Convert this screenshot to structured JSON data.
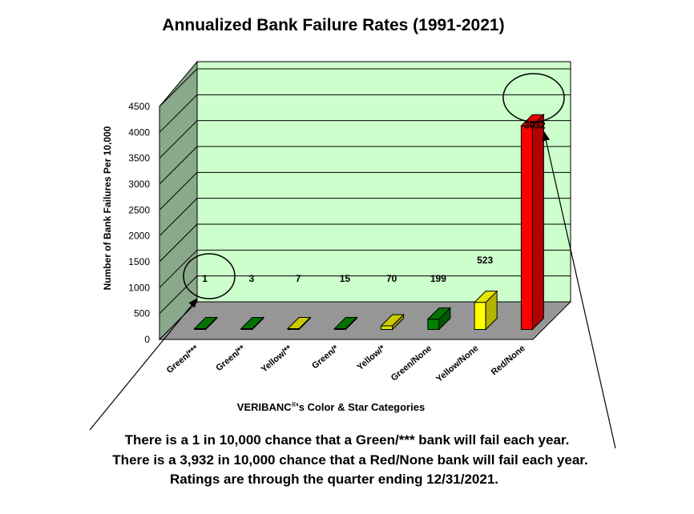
{
  "chart_data": {
    "type": "bar",
    "title": "Annualized Bank Failure Rates (1991-2021)",
    "ylabel": "Number of Bank Failures Per 10,000",
    "xlabel_prefix": "VERIBANC",
    "xlabel_mark": "®",
    "xlabel_suffix": "'s Color & Star Categories",
    "ylim": [
      0,
      4500
    ],
    "yticks": [
      0,
      500,
      1000,
      1500,
      2000,
      2500,
      3000,
      3500,
      4000,
      4500
    ],
    "categories": [
      "Green/***",
      "Green/**",
      "Yellow/**",
      "Green/*",
      "Yellow/*",
      "Green/None",
      "Yellow/None",
      "Red/None"
    ],
    "values": [
      1,
      3,
      7,
      15,
      70,
      199,
      523,
      3932
    ],
    "bar_colors": [
      "#008000",
      "#008000",
      "#e0e000",
      "#008000",
      "#e0e000",
      "#008000",
      "#ffff00",
      "#ff0000"
    ],
    "wall_color": "#ccffcc",
    "side_wall_color": "#8aa88a",
    "floor_color": "#969696",
    "grid": true,
    "circled_values": [
      "1",
      "3932"
    ]
  },
  "notes": [
    "There is a 1 in 10,000 chance that a Green/*** bank will fail each year.",
    "There is a 3,932 in 10,000 chance that a Red/None bank will fail each year.",
    "Ratings are through the quarter ending 12/31/2021."
  ]
}
